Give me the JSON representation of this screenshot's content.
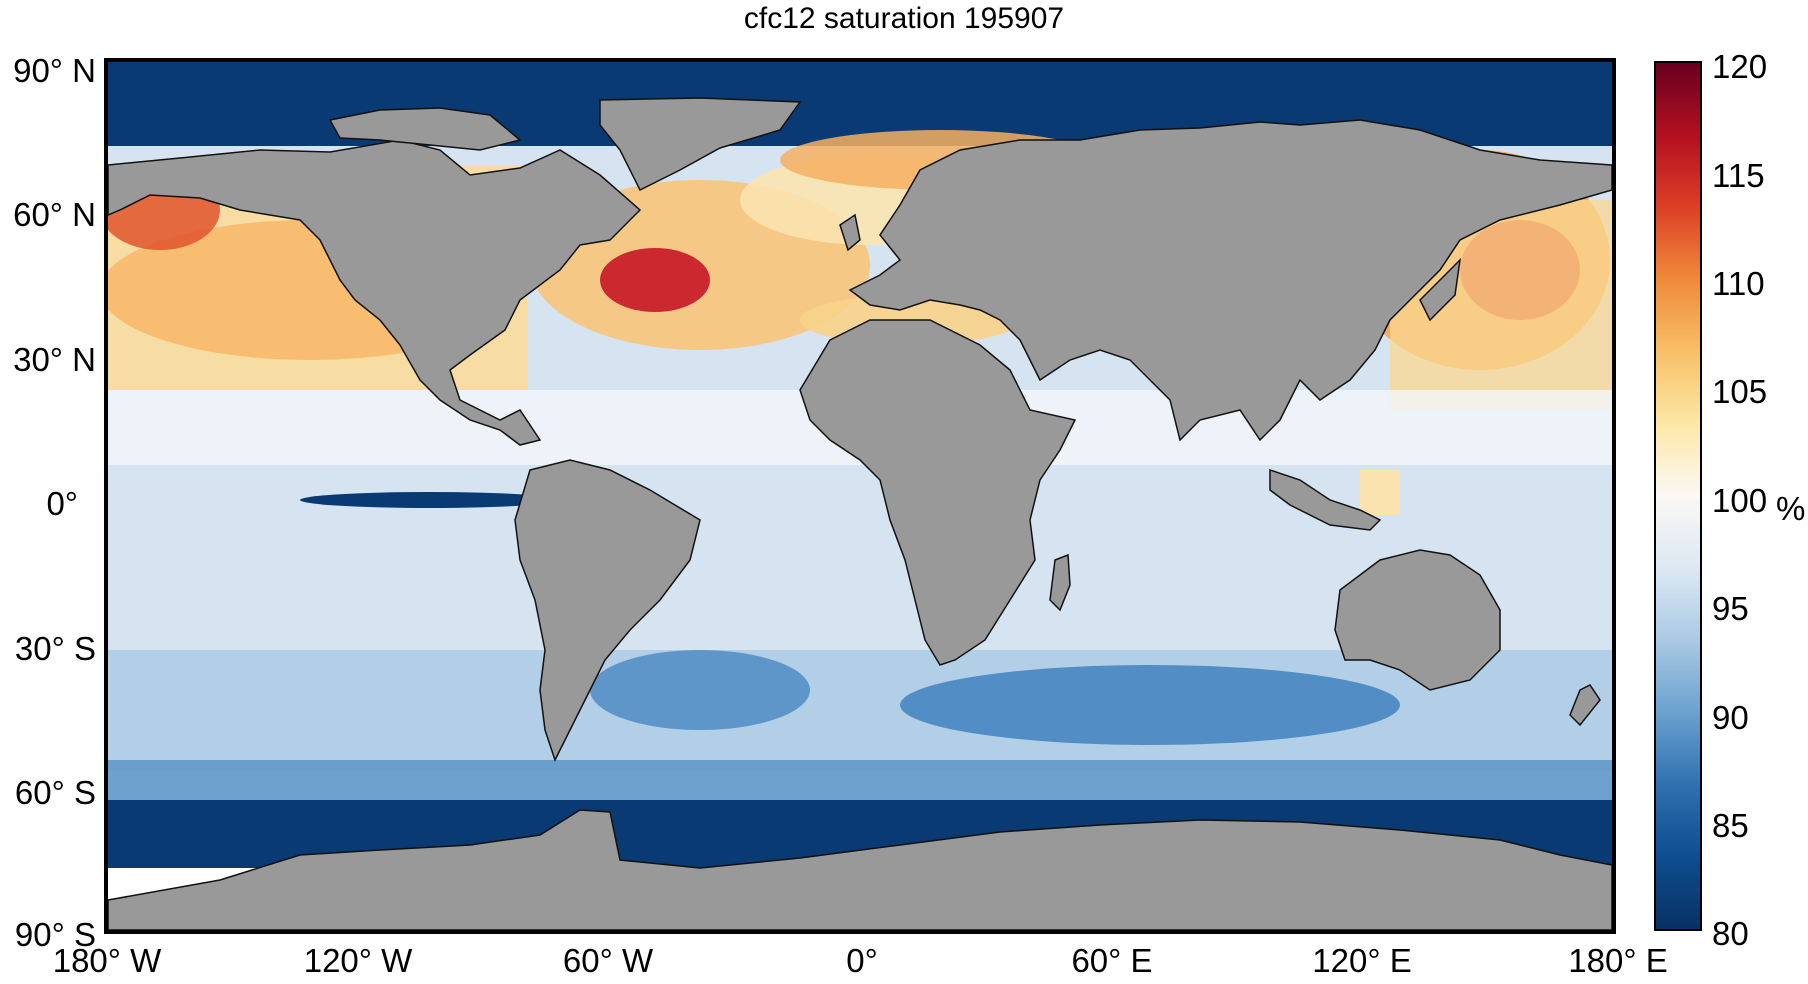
{
  "title": "cfc12 saturation 195907",
  "y_labels": [
    "90° N",
    "60° N",
    "30° N",
    "0°",
    "30° S",
    "60° S",
    "90° S"
  ],
  "x_labels": [
    "180° W",
    "120° W",
    "60° W",
    "0°",
    "60° E",
    "120° E",
    "180° E"
  ],
  "colorbar": {
    "ticks": [
      "120",
      "115",
      "110",
      "105",
      "100",
      "95",
      "90",
      "85",
      "80"
    ],
    "unit": "%",
    "min": 80,
    "max": 120,
    "colors": [
      "#083163",
      "#0e4d8f",
      "#2f70b0",
      "#6aa1cf",
      "#a9c9e3",
      "#dce8f3",
      "#fbf8f4",
      "#fce8a6",
      "#f8bf66",
      "#ef8a3a",
      "#dc3f26",
      "#b20f20",
      "#67001f"
    ]
  },
  "colors": {
    "land": "#999999",
    "ocean_base": "#d6e4f2",
    "frame": "#000000"
  }
}
